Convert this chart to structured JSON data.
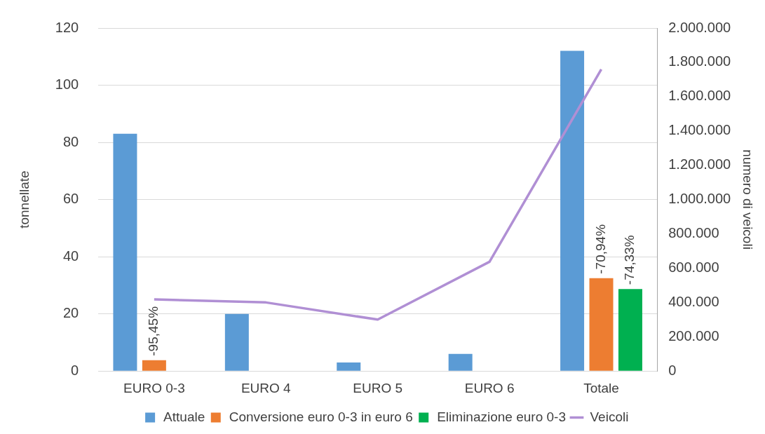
{
  "chart_data": {
    "type": "bar",
    "categories": [
      "EURO 0-3",
      "EURO 4",
      "EURO 5",
      "EURO 6",
      "Totale"
    ],
    "series": [
      {
        "name": "Attuale",
        "color": "#5b9bd5",
        "values": [
          83,
          20,
          3,
          6,
          112
        ]
      },
      {
        "name": "Conversione euro 0-3 in euro 6",
        "color": "#ed7d31",
        "values": [
          3.8,
          null,
          null,
          null,
          32.5
        ]
      },
      {
        "name": "Eliminazione euro 0-3",
        "color": "#00b050",
        "values": [
          null,
          null,
          null,
          null,
          28.7
        ]
      },
      {
        "name": "Veicoli",
        "type": "line",
        "axis": "y2",
        "color": "#b08fd4",
        "values": [
          418000,
          400000,
          300000,
          637000,
          1759000
        ]
      }
    ],
    "annotations": [
      {
        "text": "-95,45%",
        "x": "EURO 0-3",
        "y": 3.8
      },
      {
        "text": "-70,94%",
        "x": "Totale",
        "y": 32.5
      },
      "-74,33%"
    ],
    "ylabel": "tonnellate",
    "y2label": "numero di veicoli",
    "ylim": [
      0,
      120
    ],
    "yticks": [
      0,
      20,
      40,
      60,
      80,
      100,
      120
    ],
    "y2lim": [
      0,
      2000000
    ],
    "y2ticks": [
      0,
      {
        "value": 200000,
        "label": "200.000"
      },
      {
        "value": 400000,
        "label": "400.000"
      },
      {
        "value": 600000,
        "label": "600.000"
      },
      {
        "value": 800000,
        "label": "800.000"
      },
      {
        "value": 1000000,
        "label": "1.000.000"
      },
      {
        "value": 1200000,
        "label": "1.200.000"
      },
      {
        "value": 1400000,
        "label": "1.400.000"
      },
      {
        "value": 1600000,
        "label": "1.600.000"
      },
      {
        "value": 1800000,
        "label": "1.800.000"
      },
      {
        "value": 2000000,
        "label": "2.000.000"
      }
    ],
    "grid": "y",
    "legend": "bottom",
    "marker": "none"
  }
}
